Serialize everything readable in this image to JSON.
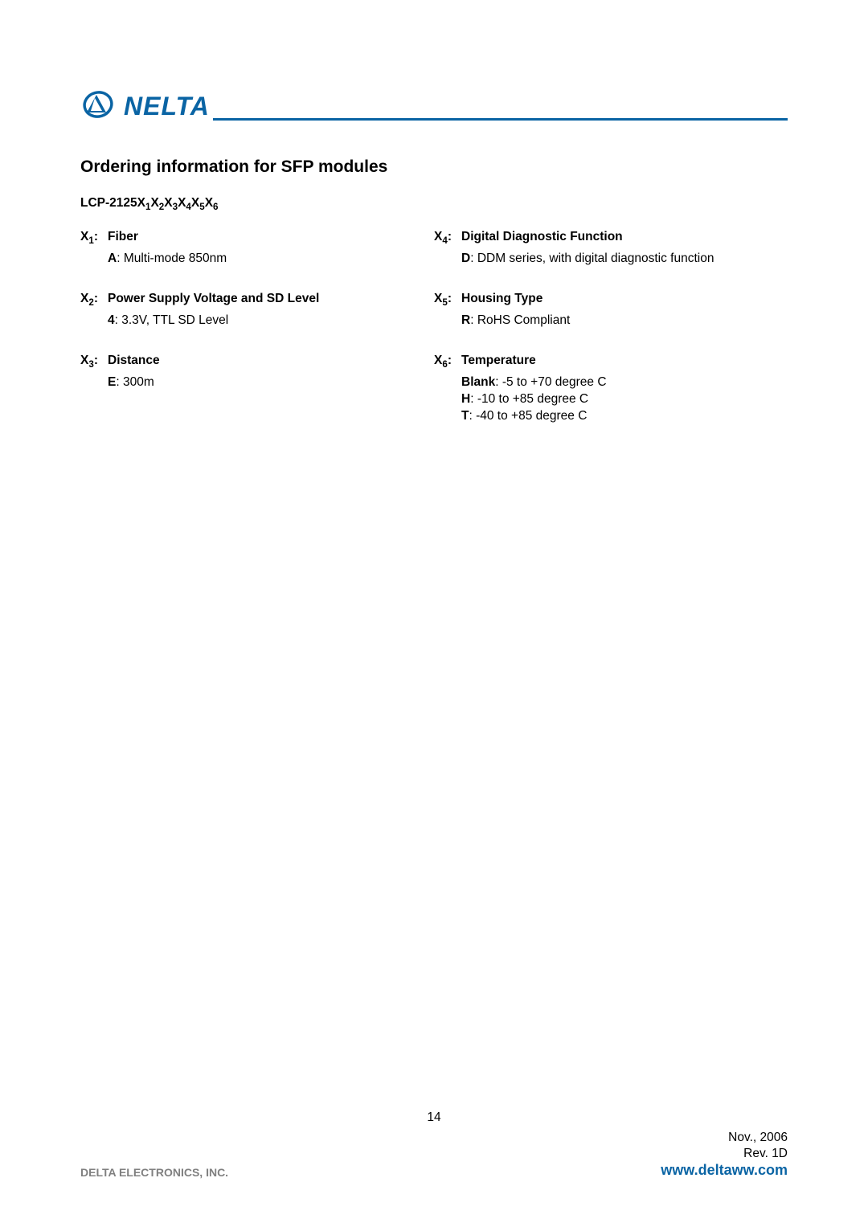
{
  "logo_text": "NELTA",
  "title": "Ordering information for SFP modules",
  "part_prefix": "LCP-2125X",
  "left": [
    {
      "key": "X",
      "sub": "1",
      "label": "Fiber",
      "lines": [
        "<b>A</b>: Multi-mode 850nm"
      ]
    },
    {
      "key": "X",
      "sub": "2",
      "label": "Power Supply Voltage and SD Level",
      "lines": [
        "<b>4</b>: 3.3V, TTL SD Level"
      ]
    },
    {
      "key": "X",
      "sub": "3",
      "label": "Distance",
      "lines": [
        "<b>E</b>: 300m"
      ]
    }
  ],
  "right": [
    {
      "key": "X",
      "sub": "4",
      "label": "Digital Diagnostic Function",
      "lines": [
        "<b>D</b>: DDM series, with digital diagnostic function"
      ]
    },
    {
      "key": "X",
      "sub": "5",
      "label": "Housing Type",
      "lines": [
        "<b>R</b>: RoHS Compliant"
      ]
    },
    {
      "key": "X",
      "sub": "6",
      "label": "Temperature",
      "lines": [
        "<b>Blank</b>: -5 to +70 degree C",
        "<b>H</b>: -10 to +85 degree C",
        "<b>T</b>: -40 to +85 degree C"
      ]
    }
  ],
  "page_number": "14",
  "date": "Nov., 2006",
  "rev": "Rev. 1D",
  "company": "DELTA ELECTRONICS, INC.",
  "url": "www.deltaww.com"
}
